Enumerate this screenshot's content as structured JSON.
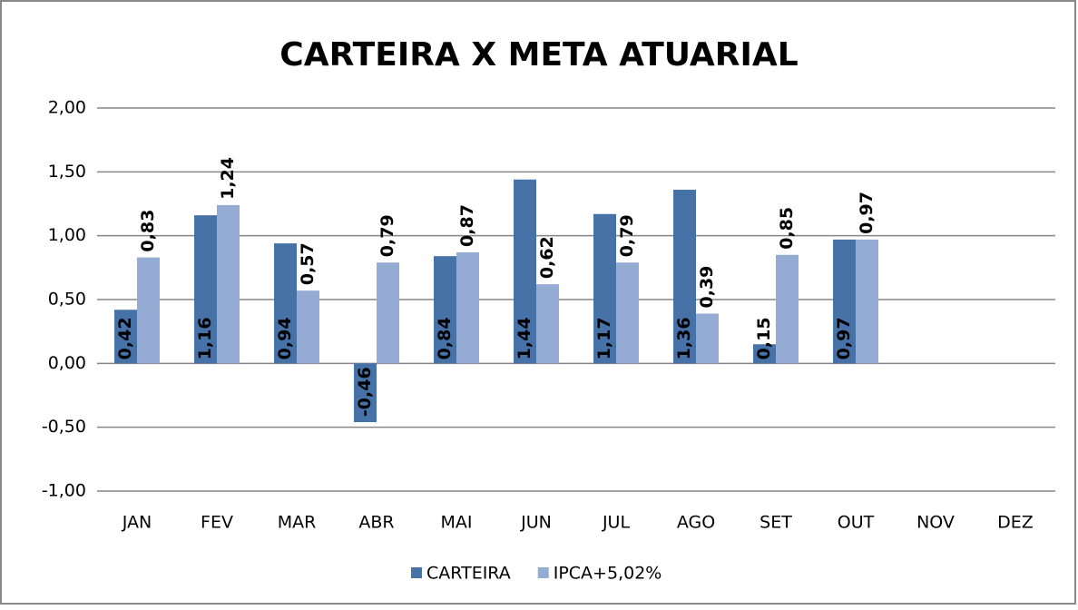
{
  "chart_data": {
    "type": "bar",
    "title": "CARTEIRA X META ATUARIAL",
    "categories": [
      "JAN",
      "FEV",
      "MAR",
      "ABR",
      "MAI",
      "JUN",
      "JUL",
      "AGO",
      "SET",
      "OUT",
      "NOV",
      "DEZ"
    ],
    "series": [
      {
        "name": "CARTEIRA",
        "color": "#4672a8",
        "values": [
          0.42,
          1.16,
          0.94,
          -0.46,
          0.84,
          1.44,
          1.17,
          1.36,
          0.15,
          0.97,
          null,
          null
        ],
        "value_labels": [
          "0,42",
          "1,16",
          "0,94",
          "-0,46",
          "0,84",
          "1,44",
          "1,17",
          "1,36",
          "0,15",
          "0,97",
          null,
          null
        ]
      },
      {
        "name": "IPCA+5,02%",
        "color": "#94abd4",
        "values": [
          0.83,
          1.24,
          0.57,
          0.79,
          0.87,
          0.62,
          0.79,
          0.39,
          0.85,
          0.97,
          null,
          null
        ],
        "value_labels": [
          "0,83",
          "1,24",
          "0,57",
          "0,79",
          "0,87",
          "0,62",
          "0,79",
          "0,39",
          "0,85",
          "0,97",
          null,
          null
        ]
      }
    ],
    "ylim": [
      -1,
      2
    ],
    "yticks": [
      {
        "value": -1,
        "label": "-1,00"
      },
      {
        "value": -0.5,
        "label": "-0,50"
      },
      {
        "value": 0,
        "label": "0,00"
      },
      {
        "value": 0.5,
        "label": "0,50"
      },
      {
        "value": 1,
        "label": "1,00"
      },
      {
        "value": 1.5,
        "label": "1,50"
      },
      {
        "value": 2,
        "label": "2,00"
      }
    ],
    "grid": true,
    "legend": "bottom"
  }
}
